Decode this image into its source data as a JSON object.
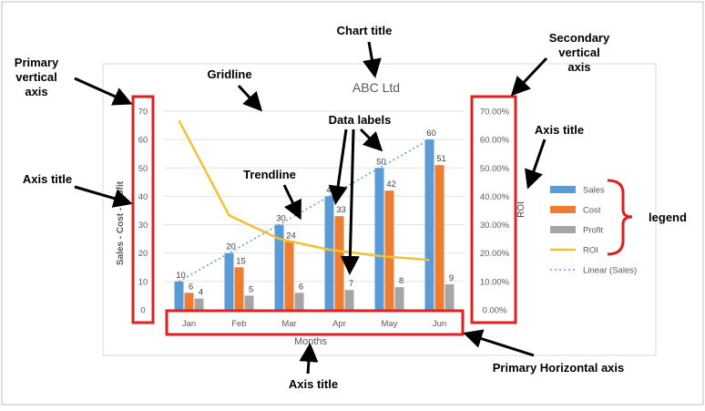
{
  "chart_data": {
    "type": "bar",
    "title": "ABC Ltd",
    "xlabel": "Months",
    "ylabel": "Sales - Cost - Profit",
    "y2label": "ROI",
    "categories": [
      "Jan",
      "Feb",
      "Mar",
      "Apr",
      "May",
      "Jun"
    ],
    "ylim": [
      0,
      70
    ],
    "y_ticks": [
      "0",
      "10",
      "20",
      "30",
      "40",
      "50",
      "60",
      "70"
    ],
    "y2lim": [
      0,
      0.7
    ],
    "y2_ticks": [
      "0.00%",
      "10.00%",
      "20.00%",
      "30.00%",
      "40.00%",
      "50.00%",
      "60.00%",
      "70.00%"
    ],
    "series": [
      {
        "name": "Sales",
        "type": "bar",
        "color": "#5b9bd5",
        "values": [
          10,
          20,
          30,
          40,
          50,
          60
        ],
        "labels": [
          "10",
          "20",
          "30",
          "40",
          "50",
          "60"
        ]
      },
      {
        "name": "Cost",
        "type": "bar",
        "color": "#ed7d31",
        "values": [
          6,
          15,
          24,
          33,
          42,
          51
        ],
        "labels": [
          "6",
          "15",
          "24",
          "33",
          "42",
          "51"
        ]
      },
      {
        "name": "Profit",
        "type": "bar",
        "color": "#a5a5a5",
        "values": [
          4,
          5,
          6,
          7,
          8,
          9
        ],
        "labels": [
          "4",
          "5",
          "6",
          "7",
          "8",
          "9"
        ]
      },
      {
        "name": "ROI",
        "type": "line",
        "axis": "secondary",
        "color": "#f2c230",
        "values": [
          0.667,
          0.333,
          0.25,
          0.212,
          0.19,
          0.176
        ]
      }
    ],
    "trendline": {
      "name": "Linear (Sales)",
      "of": "Sales",
      "color": "#5b9bd5",
      "style": "dotted"
    },
    "grid": true,
    "legend": "right"
  },
  "annotations": {
    "chart_title": "Chart title",
    "secondary_vertical_axis": [
      "Secondary",
      "vertical",
      "axis"
    ],
    "primary_vertical_axis": [
      "Primary",
      "vertical",
      "axis"
    ],
    "gridline": "Gridline",
    "data_labels": "Data labels",
    "axis_title_top_right": "Axis title",
    "axis_title_left": "Axis title",
    "trendline": "Trendline",
    "legend": "legend",
    "axis_title_bottom": "Axis title",
    "primary_horizontal_axis": "Primary Horizontal axis"
  }
}
